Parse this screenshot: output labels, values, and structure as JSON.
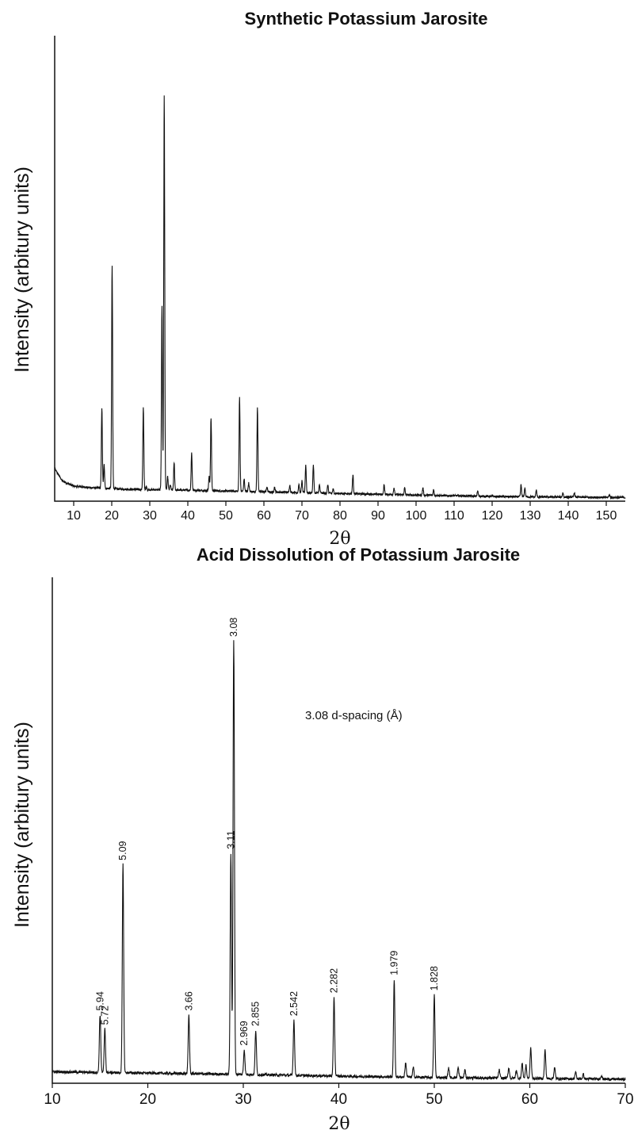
{
  "chart_data": [
    {
      "type": "line",
      "title": "Synthetic Potassium Jarosite",
      "xlabel": "2θ",
      "ylabel": "Intensity (arbitury units)",
      "xlim": [
        5,
        155
      ],
      "ylim": [
        0,
        100
      ],
      "xticks": [
        10,
        20,
        30,
        40,
        50,
        60,
        70,
        80,
        90,
        100,
        110,
        120,
        130,
        140,
        150
      ],
      "yticks_shown": false,
      "baseline": [
        [
          5,
          8
        ],
        [
          7,
          5
        ],
        [
          10,
          3.7
        ],
        [
          15,
          3.3
        ],
        [
          25,
          2.9
        ],
        [
          40,
          2.7
        ],
        [
          60,
          2.3
        ],
        [
          80,
          1.9
        ],
        [
          100,
          1.5
        ],
        [
          125,
          1.1
        ],
        [
          155,
          0.9
        ]
      ],
      "peaks": [
        {
          "x": 17.4,
          "y": 23
        },
        {
          "x": 18.0,
          "y": 9
        },
        {
          "x": 20.1,
          "y": 58
        },
        {
          "x": 28.3,
          "y": 23
        },
        {
          "x": 29.1,
          "y": 3.5
        },
        {
          "x": 33.2,
          "y": 48
        },
        {
          "x": 33.8,
          "y": 100
        },
        {
          "x": 34.7,
          "y": 6
        },
        {
          "x": 35.4,
          "y": 4
        },
        {
          "x": 36.4,
          "y": 9.5
        },
        {
          "x": 41.0,
          "y": 12
        },
        {
          "x": 45.6,
          "y": 6
        },
        {
          "x": 46.1,
          "y": 20.5
        },
        {
          "x": 53.6,
          "y": 25.5
        },
        {
          "x": 54.8,
          "y": 5.5
        },
        {
          "x": 56.0,
          "y": 4.5
        },
        {
          "x": 58.3,
          "y": 23
        },
        {
          "x": 60.8,
          "y": 3.5
        },
        {
          "x": 62.8,
          "y": 3.5
        },
        {
          "x": 66.8,
          "y": 4
        },
        {
          "x": 69.2,
          "y": 4
        },
        {
          "x": 70.0,
          "y": 5
        },
        {
          "x": 71.0,
          "y": 9
        },
        {
          "x": 73.0,
          "y": 9
        },
        {
          "x": 74.6,
          "y": 4
        },
        {
          "x": 76.8,
          "y": 4
        },
        {
          "x": 78.2,
          "y": 3
        },
        {
          "x": 83.4,
          "y": 6.5
        },
        {
          "x": 91.6,
          "y": 4
        },
        {
          "x": 94.2,
          "y": 3.3
        },
        {
          "x": 97.0,
          "y": 3.3
        },
        {
          "x": 101.8,
          "y": 3.3
        },
        {
          "x": 104.6,
          "y": 2.8
        },
        {
          "x": 116.2,
          "y": 2.5
        },
        {
          "x": 127.6,
          "y": 4
        },
        {
          "x": 128.6,
          "y": 3.3
        },
        {
          "x": 131.6,
          "y": 2.7
        },
        {
          "x": 138.6,
          "y": 2.1
        },
        {
          "x": 141.6,
          "y": 2.1
        },
        {
          "x": 150.8,
          "y": 1.6
        }
      ]
    },
    {
      "type": "line",
      "title": "Acid Dissolution of Potassium Jarosite",
      "xlabel": "2θ",
      "ylabel": "Intensity (arbitury units)",
      "xlim": [
        10,
        70
      ],
      "ylim": [
        0,
        100
      ],
      "xticks": [
        10,
        20,
        30,
        40,
        50,
        60,
        70
      ],
      "yticks_shown": false,
      "annotation": "3.08 d-spacing (Å)",
      "baseline": [
        [
          10,
          2.6
        ],
        [
          20,
          2.3
        ],
        [
          30,
          2.0
        ],
        [
          40,
          1.6
        ],
        [
          50,
          1.3
        ],
        [
          60,
          1.1
        ],
        [
          70,
          0.9
        ]
      ],
      "peaks": [
        {
          "x": 15.0,
          "y": 15.5,
          "label": "5.94"
        },
        {
          "x": 15.5,
          "y": 12.3,
          "label": "5.72"
        },
        {
          "x": 17.4,
          "y": 49.5,
          "label": "5.09"
        },
        {
          "x": 24.3,
          "y": 15.5,
          "label": "3.66"
        },
        {
          "x": 28.7,
          "y": 52,
          "label": "3.11"
        },
        {
          "x": 29.0,
          "y": 100,
          "label": "3.08"
        },
        {
          "x": 30.1,
          "y": 7.6,
          "label": "2.969"
        },
        {
          "x": 31.3,
          "y": 12,
          "label": "2.855"
        },
        {
          "x": 35.3,
          "y": 14.3,
          "label": "2.542"
        },
        {
          "x": 39.5,
          "y": 19.5,
          "label": "2.282"
        },
        {
          "x": 45.8,
          "y": 23.5,
          "label": "1.979"
        },
        {
          "x": 47.0,
          "y": 4.5
        },
        {
          "x": 47.8,
          "y": 3.5
        },
        {
          "x": 50.0,
          "y": 20,
          "label": "1.828"
        },
        {
          "x": 51.5,
          "y": 3.5
        },
        {
          "x": 52.5,
          "y": 3.5
        },
        {
          "x": 53.2,
          "y": 3
        },
        {
          "x": 56.8,
          "y": 3
        },
        {
          "x": 57.8,
          "y": 3.5
        },
        {
          "x": 58.6,
          "y": 3
        },
        {
          "x": 59.2,
          "y": 4.5
        },
        {
          "x": 59.6,
          "y": 4
        },
        {
          "x": 60.1,
          "y": 8
        },
        {
          "x": 61.6,
          "y": 7.5
        },
        {
          "x": 62.6,
          "y": 3.5
        },
        {
          "x": 64.8,
          "y": 2.5
        },
        {
          "x": 65.6,
          "y": 2
        },
        {
          "x": 67.5,
          "y": 1.8
        }
      ]
    }
  ]
}
